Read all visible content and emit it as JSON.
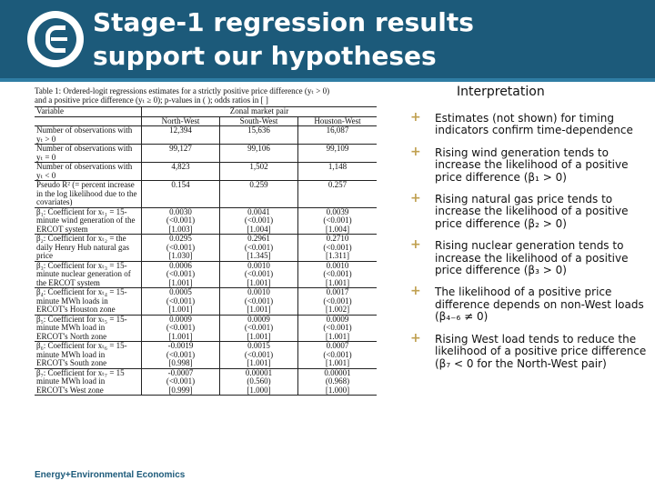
{
  "header": {
    "title_line1": "Stage-1 regression results",
    "title_line2": "support our hypotheses"
  },
  "table": {
    "caption_line1": "Table 1: Ordered-logit regressions estimates for a strictly positive price difference (yₜ > 0)",
    "caption_line2": "and a positive price difference (yₜ ≥ 0); p-values in ( ); odds ratios in [ ]",
    "variable_header": "Variable",
    "zonal_header": "Zonal market pair",
    "col_headers": [
      "North-West",
      "South-West",
      "Houston-West"
    ],
    "rows": [
      {
        "label": [
          "Number of observations with",
          "yₜ > 0"
        ],
        "values": [
          [
            "12,394"
          ],
          [
            "15,636"
          ],
          [
            "16,087"
          ]
        ]
      },
      {
        "label": [
          "Number of observations with",
          "yₜ = 0"
        ],
        "values": [
          [
            "99,127"
          ],
          [
            "99,106"
          ],
          [
            "99,109"
          ]
        ]
      },
      {
        "label": [
          "Number of observations with",
          "yₜ < 0"
        ],
        "values": [
          [
            "4,823"
          ],
          [
            "1,502"
          ],
          [
            "1,148"
          ]
        ]
      },
      {
        "label": [
          "Pseudo R² (= percent increase",
          "in the log likelihood due to the",
          "covariates)"
        ],
        "values": [
          [
            "0.154"
          ],
          [
            "0.259"
          ],
          [
            "0.257"
          ]
        ]
      },
      {
        "label": [
          "β₁: Coefficient for xₜ₁ = 15-",
          "minute wind generation of the",
          "ERCOT system"
        ],
        "values": [
          [
            "0.0030",
            "(<0.001)",
            "[1.003]"
          ],
          [
            "0.0041",
            "(<0.001)",
            "[1.004]"
          ],
          [
            "0.0039",
            "(<0.001)",
            "[1.004]"
          ]
        ]
      },
      {
        "label": [
          "β₂: Coefficient for xₜ₂ = the",
          "daily Henry Hub natural gas",
          "price"
        ],
        "values": [
          [
            "0.0295",
            "(<0.001)",
            "[1.030]"
          ],
          [
            "0.2961",
            "(<0.001)",
            "[1.345]"
          ],
          [
            "0.2710",
            "(<0.001)",
            "[1.311]"
          ]
        ]
      },
      {
        "label": [
          "β₃: Coefficient for xₜ₃ = 15-",
          "minute nuclear generation of",
          "the ERCOT system"
        ],
        "values": [
          [
            "0.0006",
            "(<0.001)",
            "[1.001]"
          ],
          [
            "0.0010",
            "(<0.001)",
            "[1.001]"
          ],
          [
            "0.0010",
            "(<0.001)",
            "[1.001]"
          ]
        ]
      },
      {
        "label": [
          "β₄: Coefficient for xₜ₄ = 15-",
          "minute MWh loads in",
          "ERCOT's Houston zone"
        ],
        "values": [
          [
            "0.0005",
            "(<0.001)",
            "[1.001]"
          ],
          [
            "0.0010",
            "(<0.001)",
            "[1.001]"
          ],
          [
            "0.0017",
            "(<0.001)",
            "[1.002]"
          ]
        ]
      },
      {
        "label": [
          "β₅: Coefficient for xₜ₅ = 15-",
          "minute MWh load in",
          "ERCOT's North zone"
        ],
        "values": [
          [
            "0.0009",
            "(<0.001)",
            "[1.001]"
          ],
          [
            "0.0009",
            "(<0.001)",
            "[1.001]"
          ],
          [
            "0.0009",
            "(<0.001)",
            "[1.001]"
          ]
        ]
      },
      {
        "label": [
          "β₆: Coefficient for xₜ₆ = 15-",
          "minute MWh load in",
          "ERCOT's South zone"
        ],
        "values": [
          [
            "-0.0019",
            "(<0.001)",
            "[0.998]"
          ],
          [
            "0.0015",
            "(<0.001)",
            "[1.001]"
          ],
          [
            "0.0007",
            "(<0.001)",
            "[1.001]"
          ]
        ]
      },
      {
        "label": [
          "β₇: Coefficient for xₜ₇ = 15",
          "minute MWh load in",
          "ERCOT's West zone"
        ],
        "values": [
          [
            "-0.0007",
            "(<0.001)",
            "[0.999]"
          ],
          [
            "0.00001",
            "(0.560)",
            "[1.000]"
          ],
          [
            "0.00001",
            "(0.968)",
            "[1.000]"
          ]
        ]
      }
    ]
  },
  "interpretation": {
    "title": "Interpretation",
    "bullets": [
      "Estimates (not shown) for timing indicators confirm time-dependence",
      "Rising wind generation tends to increase the likelihood of a positive price difference (β₁ > 0)",
      "Rising natural gas price tends to increase the likelihood of a positive price difference (β₂ > 0)",
      "Rising nuclear generation tends to increase the likelihood of a positive price difference (β₃ > 0)",
      "The likelihood of a positive price difference depends on non-West loads (β₄₋₆ ≠ 0)",
      "Rising West load tends to reduce the likelihood of a positive price difference (β₇ < 0 for the North-West pair)"
    ]
  },
  "footer": {
    "brand": "Energy+Environmental Economics"
  },
  "colors": {
    "header_bg": "#1c5a7a",
    "bullet_accent": "#c0a050"
  },
  "icons": {
    "logo": "e3-logo-icon",
    "bullet": "plus-bullet-icon"
  }
}
